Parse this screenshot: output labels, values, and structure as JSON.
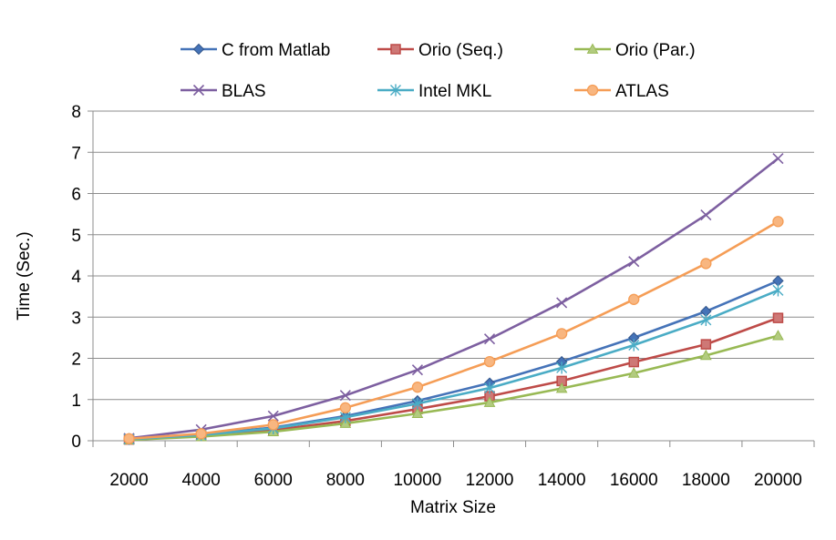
{
  "chart_data": {
    "type": "line",
    "title": "",
    "xlabel": "Matrix Size",
    "ylabel": "Time (Sec.)",
    "categories": [
      "2000",
      "4000",
      "6000",
      "8000",
      "10000",
      "12000",
      "14000",
      "16000",
      "18000",
      "20000"
    ],
    "ylim": [
      0,
      8
    ],
    "yticks": [
      "0",
      "1",
      "2",
      "3",
      "4",
      "5",
      "6",
      "7",
      "8"
    ],
    "grid": true,
    "legend_position": "top",
    "series": [
      {
        "name": "C from Matlab",
        "color": "#4573B8",
        "marker": "diamond",
        "values": [
          0.04,
          0.15,
          0.32,
          0.6,
          0.97,
          1.4,
          1.92,
          2.5,
          3.14,
          3.88
        ]
      },
      {
        "name": "Orio (Seq.)",
        "color": "#BE4B48",
        "marker": "square",
        "values": [
          0.03,
          0.12,
          0.26,
          0.48,
          0.77,
          1.08,
          1.45,
          1.91,
          2.34,
          2.98
        ]
      },
      {
        "name": "Orio (Par.)",
        "color": "#98B954",
        "marker": "triangle",
        "values": [
          0.02,
          0.1,
          0.22,
          0.42,
          0.66,
          0.93,
          1.27,
          1.64,
          2.07,
          2.55
        ]
      },
      {
        "name": "BLAS",
        "color": "#7D5FA0",
        "marker": "x",
        "values": [
          0.06,
          0.27,
          0.6,
          1.1,
          1.72,
          2.47,
          3.35,
          4.35,
          5.48,
          6.85
        ]
      },
      {
        "name": "Intel MKL",
        "color": "#4AACC5",
        "marker": "star",
        "values": [
          0.04,
          0.14,
          0.3,
          0.57,
          0.9,
          1.28,
          1.77,
          2.32,
          2.93,
          3.65
        ]
      },
      {
        "name": "ATLAS",
        "color": "#F59D56",
        "marker": "circle",
        "values": [
          0.05,
          0.17,
          0.39,
          0.8,
          1.3,
          1.92,
          2.6,
          3.43,
          4.3,
          5.32
        ]
      }
    ]
  }
}
